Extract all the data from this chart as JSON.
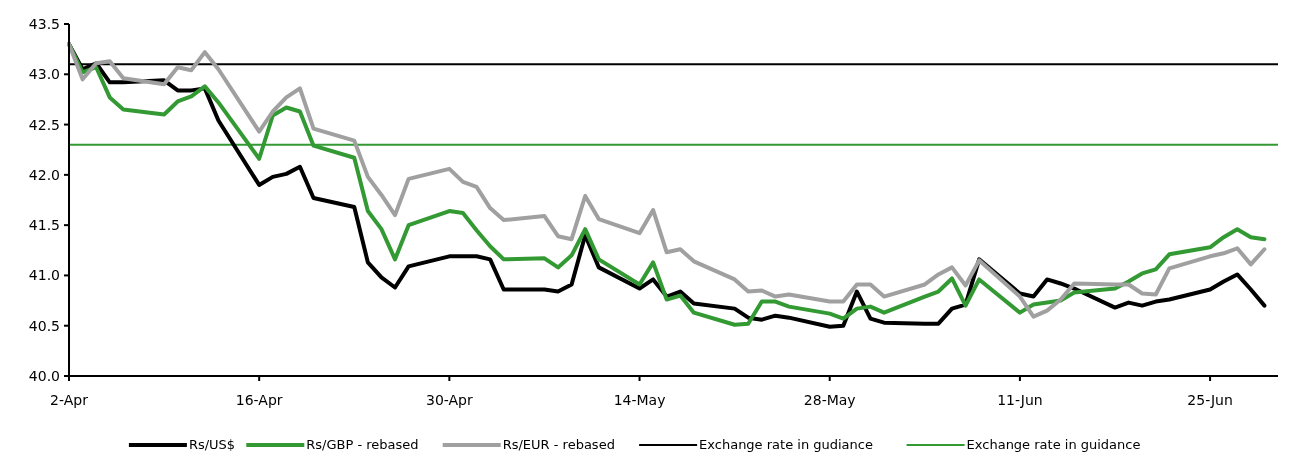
{
  "chart_data": {
    "type": "line",
    "x": [
      "--04-02",
      "--04-03",
      "--04-04",
      "--04-05",
      "--04-06",
      "--04-09",
      "--04-10",
      "--04-11",
      "--04-12",
      "--04-13",
      "--04-16",
      "--04-17",
      "--04-18",
      "--04-19",
      "--04-20",
      "--04-23",
      "--04-24",
      "--04-25",
      "--04-26",
      "--04-27",
      "--04-30",
      "--05-01",
      "--05-02",
      "--05-03",
      "--05-04",
      "--05-07",
      "--05-08",
      "--05-09",
      "--05-10",
      "--05-11",
      "--05-14",
      "--05-15",
      "--05-16",
      "--05-17",
      "--05-18",
      "--05-21",
      "--05-22",
      "--05-23",
      "--05-24",
      "--05-25",
      "--05-28",
      "--05-29",
      "--05-30",
      "--05-31",
      "--06-01",
      "--06-04",
      "--06-05",
      "--06-06",
      "--06-07",
      "--06-08",
      "--06-11",
      "--06-12",
      "--06-13",
      "--06-14",
      "--06-15",
      "--06-18",
      "--06-19",
      "--06-20",
      "--06-21",
      "--06-22",
      "--06-25",
      "--06-26",
      "--06-27",
      "--06-28",
      "--06-29"
    ],
    "series": [
      {
        "name": "Rs/US$",
        "color": "#000000",
        "values": [
          43.3,
          43.05,
          43.11,
          42.92,
          42.92,
          42.94,
          42.84,
          42.84,
          42.86,
          42.54,
          41.9,
          41.98,
          42.01,
          42.08,
          41.77,
          41.68,
          41.13,
          40.98,
          40.88,
          41.09,
          41.19,
          41.19,
          41.19,
          41.16,
          40.86,
          40.86,
          40.84,
          40.91,
          41.4,
          41.08,
          40.87,
          40.96,
          40.79,
          40.84,
          40.72,
          40.67,
          40.58,
          40.56,
          40.6,
          40.58,
          40.49,
          40.5,
          40.84,
          40.57,
          40.53,
          40.52,
          40.52,
          40.67,
          40.71,
          41.16,
          40.82,
          40.79,
          40.96,
          40.92,
          40.87,
          40.68,
          40.73,
          40.7,
          40.74,
          40.76,
          40.86,
          40.94,
          41.01,
          40.86,
          40.7
        ]
      },
      {
        "name": "Rs/GBP - rebased",
        "color": "#339933",
        "values": [
          43.3,
          43.02,
          43.07,
          42.77,
          42.65,
          42.6,
          42.73,
          42.78,
          42.88,
          42.72,
          42.16,
          42.59,
          42.67,
          42.63,
          42.29,
          42.17,
          41.64,
          41.46,
          41.16,
          41.5,
          41.64,
          41.62,
          41.45,
          41.29,
          41.16,
          41.17,
          41.08,
          41.2,
          41.46,
          41.16,
          40.91,
          41.13,
          40.76,
          40.8,
          40.63,
          40.51,
          40.52,
          40.74,
          40.74,
          40.69,
          40.62,
          40.57,
          40.67,
          40.69,
          40.63,
          40.79,
          40.84,
          40.97,
          40.7,
          40.96,
          40.63,
          40.71,
          40.73,
          40.75,
          40.83,
          40.87,
          40.94,
          41.02,
          41.06,
          41.21,
          41.28,
          41.38,
          41.46,
          41.38,
          41.36
        ]
      },
      {
        "name": "Rs/EUR - rebased",
        "color": "#a0a0a0",
        "values": [
          43.3,
          42.95,
          43.11,
          43.13,
          42.96,
          42.9,
          43.07,
          43.04,
          43.22,
          43.05,
          42.43,
          42.63,
          42.77,
          42.86,
          42.46,
          42.34,
          41.98,
          41.8,
          41.6,
          41.96,
          42.06,
          41.93,
          41.88,
          41.67,
          41.55,
          41.59,
          41.39,
          41.36,
          41.79,
          41.56,
          41.42,
          41.65,
          41.23,
          41.26,
          41.14,
          40.96,
          40.84,
          40.85,
          40.79,
          40.81,
          40.74,
          40.74,
          40.91,
          40.91,
          40.79,
          40.91,
          41.01,
          41.08,
          40.9,
          41.15,
          40.79,
          40.59,
          40.65,
          40.76,
          40.92,
          40.91,
          40.91,
          40.82,
          40.81,
          41.07,
          41.19,
          41.22,
          41.27,
          41.11,
          41.26
        ]
      }
    ],
    "ref_lines": [
      {
        "axis": "y",
        "value": 43.1,
        "label": "Exchange rate in gudiance",
        "color": "#000000"
      },
      {
        "axis": "y",
        "value": 42.3,
        "label": "Exchange rate in guidance",
        "color": "#339933"
      }
    ],
    "xlim": [
      "--04-02",
      "--06-30"
    ],
    "xticks": [
      {
        "value": "--04-02",
        "label": "2-Apr"
      },
      {
        "value": "--04-16",
        "label": "16-Apr"
      },
      {
        "value": "--04-30",
        "label": "30-Apr"
      },
      {
        "value": "--05-14",
        "label": "14-May"
      },
      {
        "value": "--05-28",
        "label": "28-May"
      },
      {
        "value": "--06-11",
        "label": "11-Jun"
      },
      {
        "value": "--06-25",
        "label": "25-Jun"
      }
    ],
    "ylim": [
      40,
      43.5
    ],
    "yticks": [
      {
        "value": 40,
        "label": "40.0"
      },
      {
        "value": 40.5,
        "label": "40.5"
      },
      {
        "value": 41,
        "label": "41.0"
      },
      {
        "value": 41.5,
        "label": "41.5"
      },
      {
        "value": 42,
        "label": "42.0"
      },
      {
        "value": 42.5,
        "label": "42.5"
      },
      {
        "value": 43,
        "label": "43.0"
      },
      {
        "value": 43.5,
        "label": "43.5"
      }
    ],
    "grid": false,
    "legend": "bottom",
    "line_style": "solid"
  }
}
